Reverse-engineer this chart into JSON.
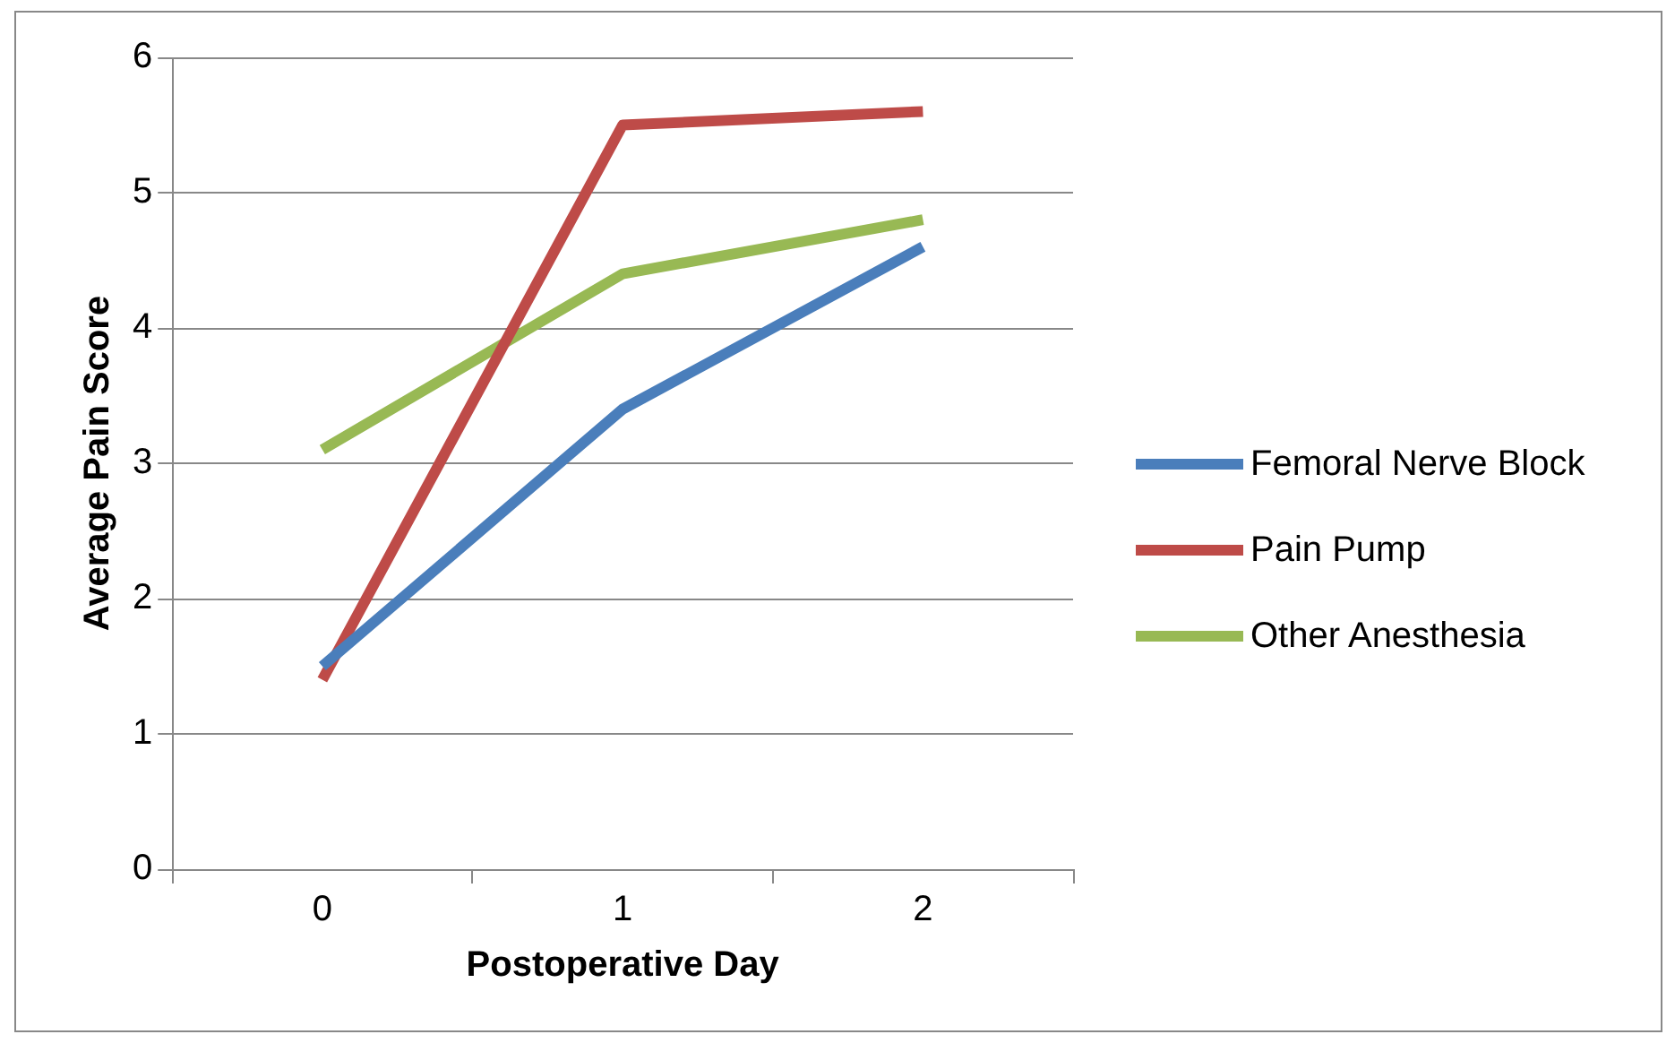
{
  "chart_data": {
    "type": "line",
    "xlabel": "Postoperative Day",
    "ylabel": "Average Pain Score",
    "categories": [
      "0",
      "1",
      "2"
    ],
    "series": [
      {
        "name": "Femoral Nerve Block",
        "color": "#4a7ebb",
        "values": [
          1.5,
          3.4,
          4.6
        ]
      },
      {
        "name": "Pain Pump",
        "color": "#be4b48",
        "values": [
          1.4,
          5.5,
          5.6
        ]
      },
      {
        "name": "Other Anesthesia",
        "color": "#98b954",
        "values": [
          3.1,
          4.4,
          4.8
        ]
      }
    ],
    "ylim": [
      0,
      6
    ],
    "yticks": [
      0,
      1,
      2,
      3,
      4,
      5,
      6
    ],
    "grid": "y",
    "legend": "right",
    "marker": "none",
    "line_style": "solid"
  }
}
